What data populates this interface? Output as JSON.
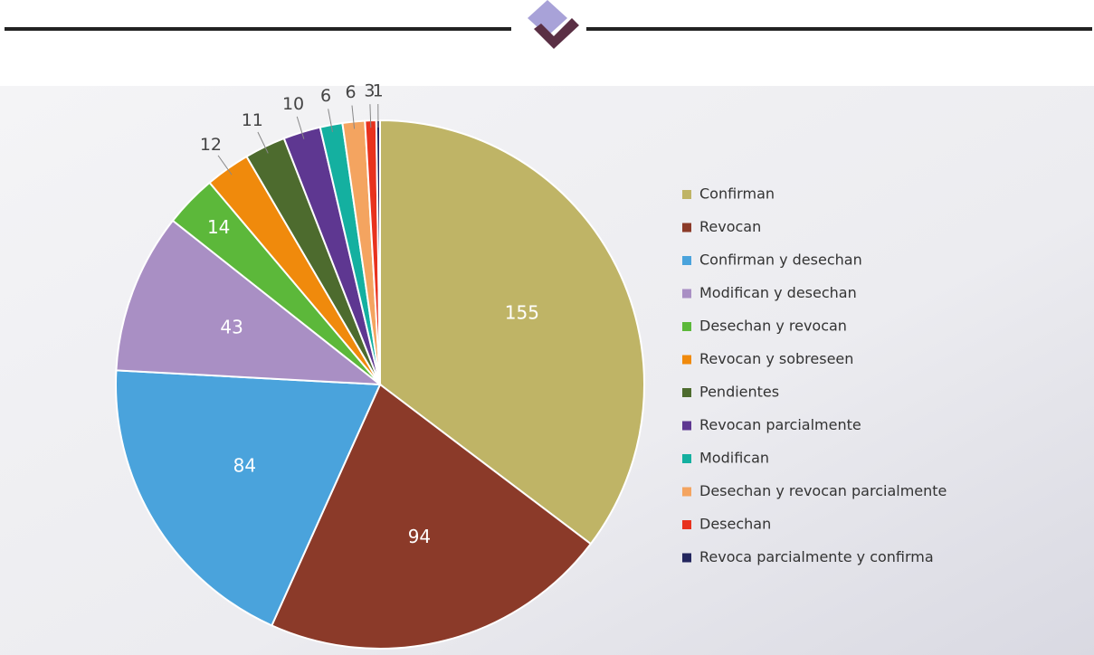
{
  "chart_data": {
    "type": "pie",
    "categories": [
      "Confirman",
      "Revocan",
      "Confirman y desechan",
      "Modifican y desechan",
      "Desechan y revocan",
      "Revocan y sobreseen",
      "Pendientes",
      "Revocan parcialmente",
      "Modifican",
      "Desechan y revocan parcialmente",
      "Desechan",
      "Revoca parcialmente y confirma"
    ],
    "values": [
      155,
      94,
      84,
      43,
      14,
      12,
      11,
      10,
      6,
      6,
      3,
      1
    ],
    "colors": [
      "#bfb466",
      "#8b3a29",
      "#4aa3dc",
      "#a98fc4",
      "#5cb83a",
      "#f08a0c",
      "#4d6b2e",
      "#5e3791",
      "#14b0a0",
      "#f4a460",
      "#e8321e",
      "#23265e"
    ],
    "legend": "right"
  }
}
